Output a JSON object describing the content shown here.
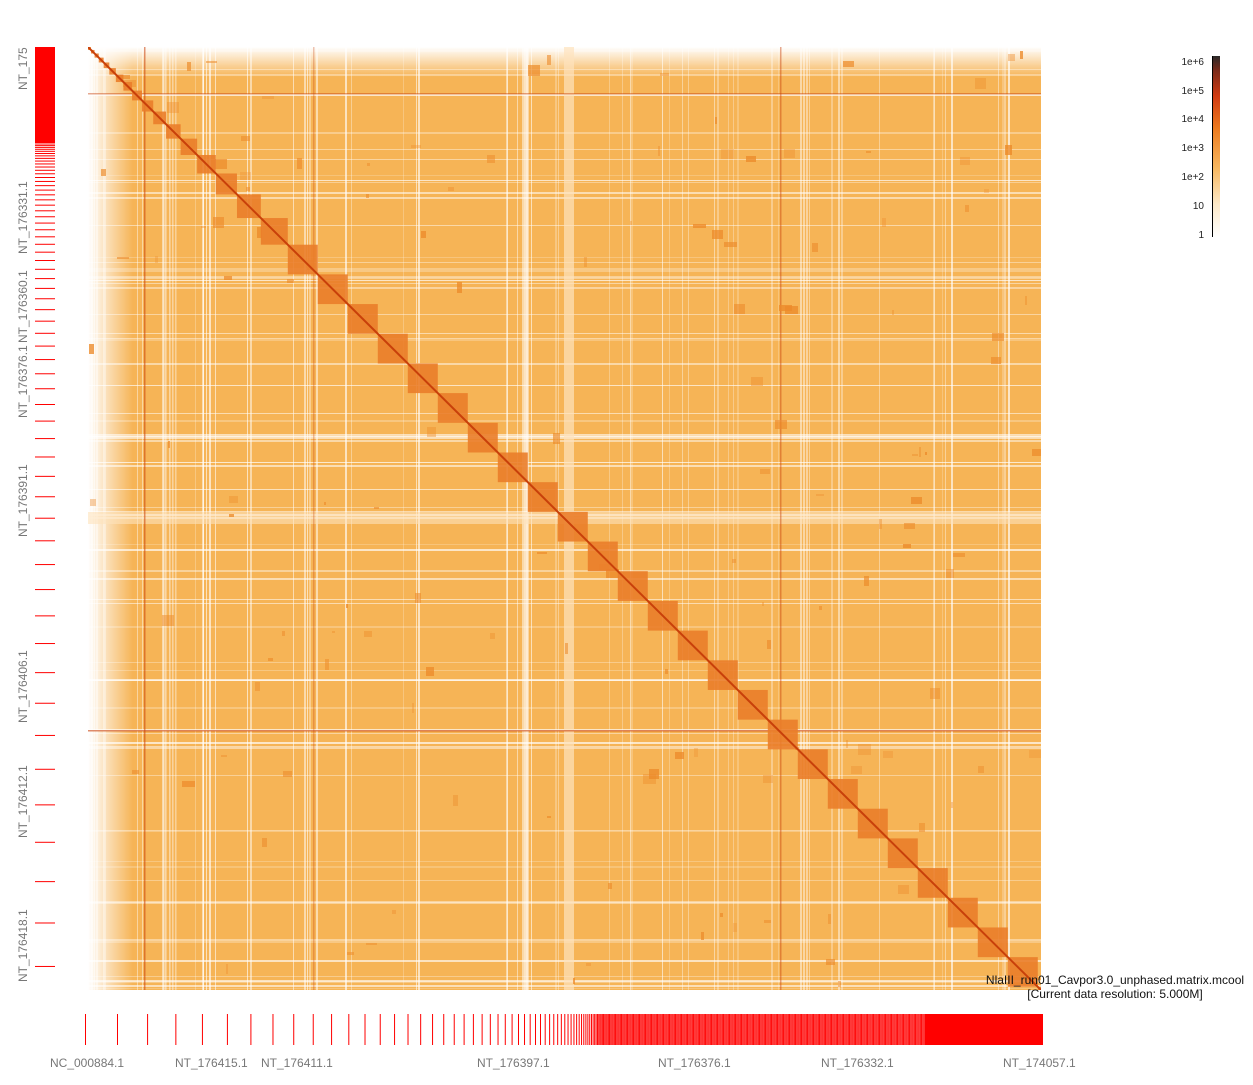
{
  "dataset": {
    "filename": "NlaIII_run01_Cavpor3.0_unphased.matrix.mcool",
    "resolution": "[Current data resolution: 5.000M]"
  },
  "y_axis_labels": [
    "NT_175",
    "NT_176331.1",
    "NT_176360.1",
    "NT_176376.1",
    "NT_176391.1",
    "NT_176406.1",
    "NT_176412.1",
    "NT_176418.1"
  ],
  "x_axis_labels": [
    "NC_000884.1",
    "NT_176415.1",
    "NT_176411.1",
    "NT_176397.1",
    "NT_176376.1",
    "NT_176332.1",
    "NT_174057.1"
  ],
  "colorbar": {
    "ticks": [
      "1e+6",
      "1e+5",
      "1e+4",
      "1e+3",
      "1e+2",
      "10",
      "1"
    ]
  },
  "colors": {
    "background": "#f6b456",
    "diagonal": "#c8400a",
    "track": "#ff0000",
    "label": "#777777"
  }
}
